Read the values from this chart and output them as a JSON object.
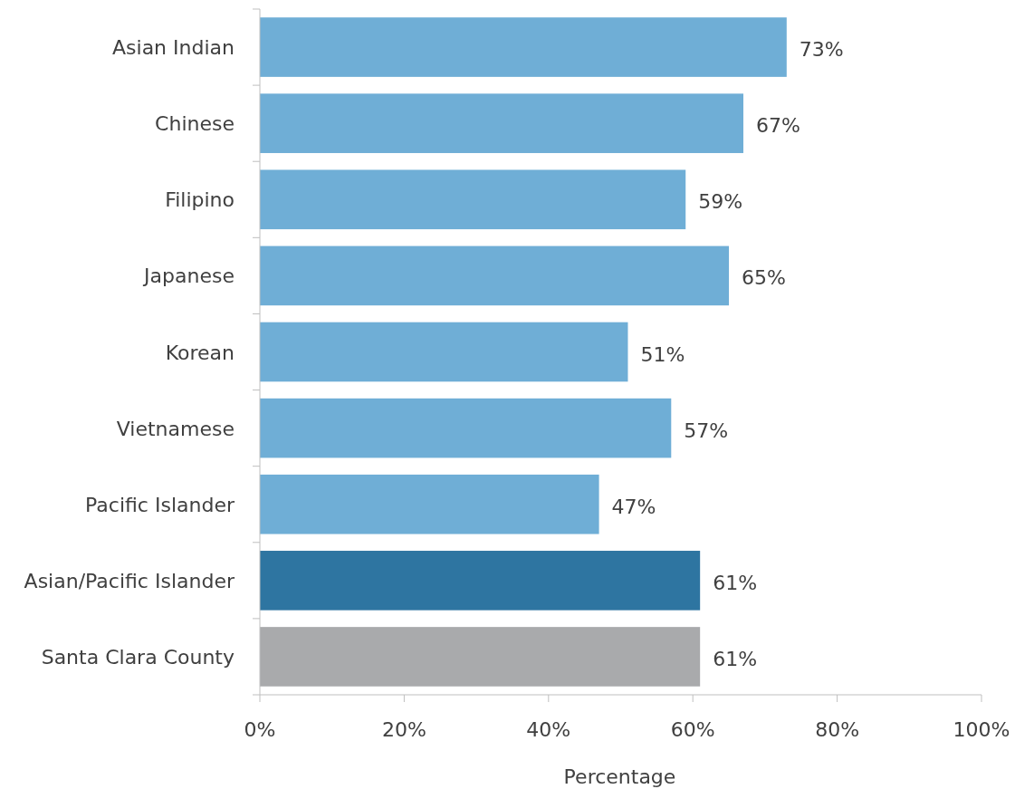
{
  "chart_data": {
    "type": "bar",
    "orientation": "horizontal",
    "xlabel": "Percentage",
    "categories": [
      "Asian Indian",
      "Chinese",
      "Filipino",
      "Japanese",
      "Korean",
      "Vietnamese",
      "Pacific Islander",
      "Asian/Pacific Islander",
      "Santa Clara County"
    ],
    "values": [
      73,
      67,
      59,
      65,
      51,
      57,
      47,
      61,
      61
    ],
    "colors": [
      "#6faed6",
      "#6faed6",
      "#6faed6",
      "#6faed6",
      "#6faed6",
      "#6faed6",
      "#6faed6",
      "#2e75a1",
      "#a9aaac"
    ],
    "value_labels": [
      "73%",
      "67%",
      "59%",
      "65%",
      "51%",
      "57%",
      "47%",
      "61%",
      "61%"
    ],
    "xlim": [
      0,
      100
    ],
    "xticks": [
      {
        "value": 0,
        "label": "0%"
      },
      {
        "value": 20,
        "label": "20%"
      },
      {
        "value": 40,
        "label": "40%"
      },
      {
        "value": 60,
        "label": "60%"
      },
      {
        "value": 80,
        "label": "80%"
      },
      {
        "value": 100,
        "label": "100%"
      }
    ],
    "grid": false
  }
}
